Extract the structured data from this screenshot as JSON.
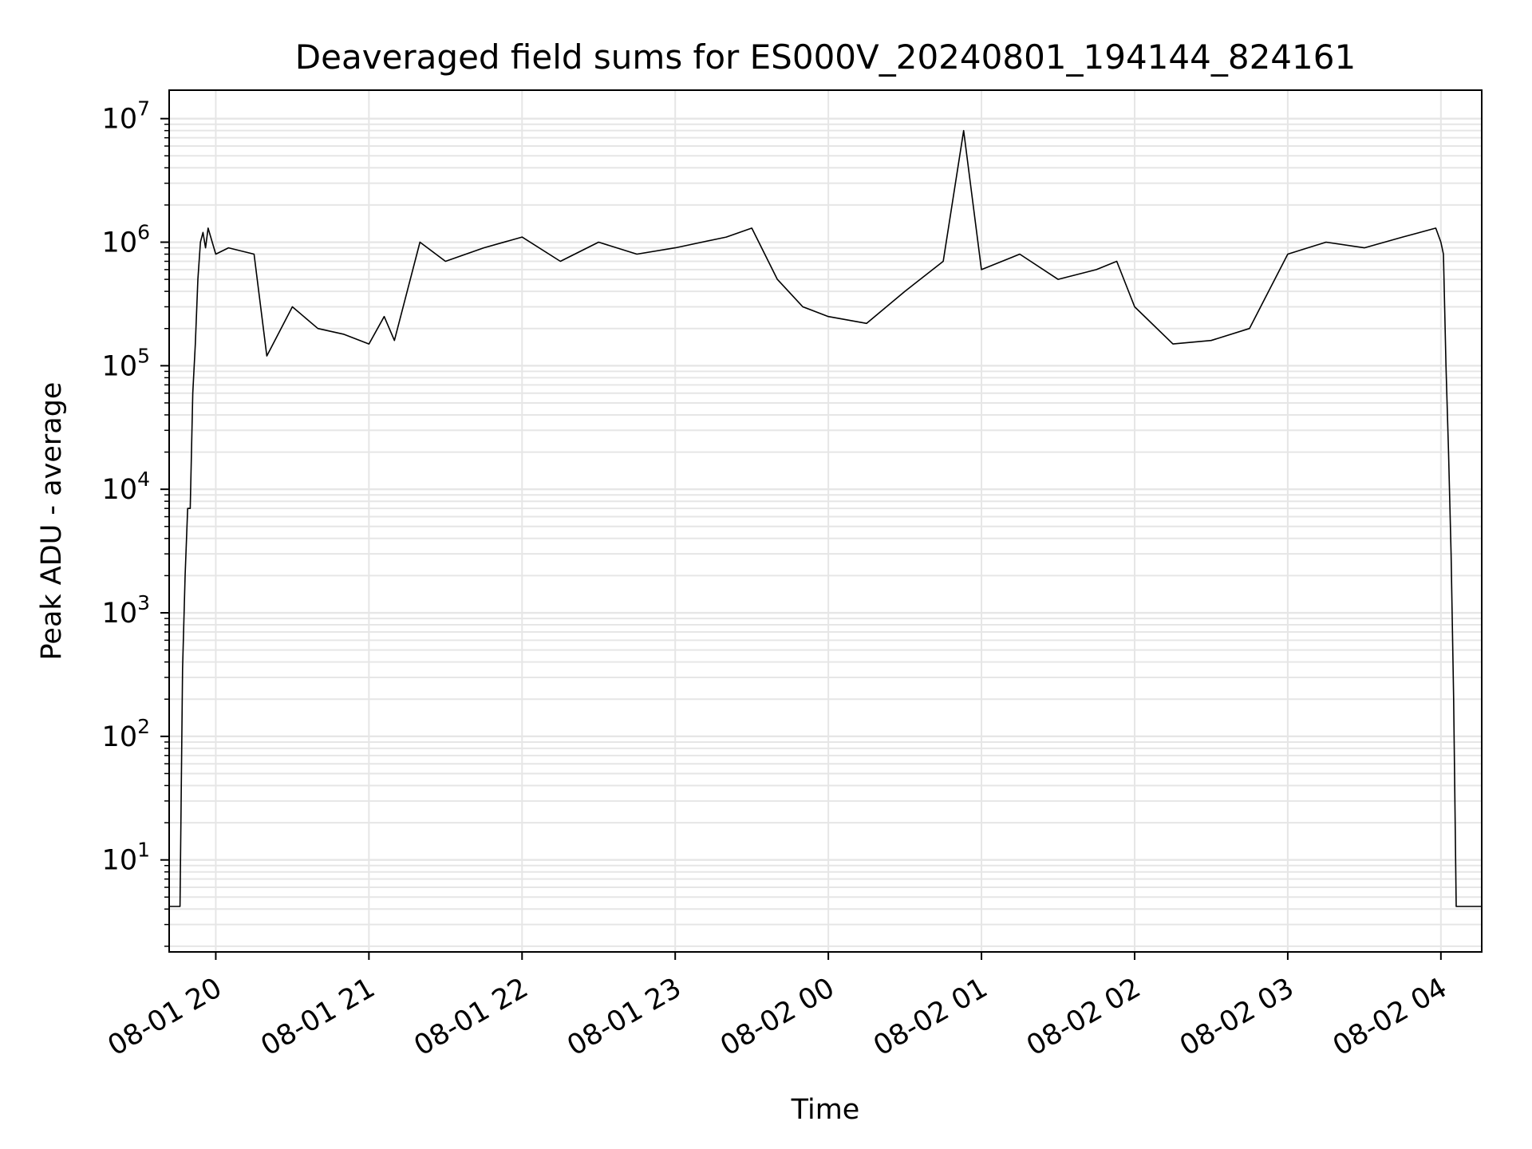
{
  "chart_data": {
    "type": "line",
    "title": "Deaveraged field sums for ES000V_20240801_194144_824161",
    "xlabel": "Time",
    "ylabel": "Peak ADU - average",
    "yscale": "log",
    "ylim": [
      1.8,
      17000000
    ],
    "xlim": [
      "2024-08-01T19:41:44",
      "2024-08-02T04:16:00"
    ],
    "grid": true,
    "line_color": "#000000",
    "grid_color": "#e6e6e6",
    "xticks": [
      {
        "t": "2024-08-01T20:00:00",
        "label": "08-01 20"
      },
      {
        "t": "2024-08-01T21:00:00",
        "label": "08-01 21"
      },
      {
        "t": "2024-08-01T22:00:00",
        "label": "08-01 22"
      },
      {
        "t": "2024-08-01T23:00:00",
        "label": "08-01 23"
      },
      {
        "t": "2024-08-02T00:00:00",
        "label": "08-02 00"
      },
      {
        "t": "2024-08-02T01:00:00",
        "label": "08-02 01"
      },
      {
        "t": "2024-08-02T02:00:00",
        "label": "08-02 02"
      },
      {
        "t": "2024-08-02T03:00:00",
        "label": "08-02 03"
      },
      {
        "t": "2024-08-02T04:00:00",
        "label": "08-02 04"
      }
    ],
    "yticks": [
      {
        "exp": 1,
        "base": "10",
        "sup": "1"
      },
      {
        "exp": 2,
        "base": "10",
        "sup": "2"
      },
      {
        "exp": 3,
        "base": "10",
        "sup": "3"
      },
      {
        "exp": 4,
        "base": "10",
        "sup": "4"
      },
      {
        "exp": 5,
        "base": "10",
        "sup": "5"
      },
      {
        "exp": 6,
        "base": "10",
        "sup": "6"
      },
      {
        "exp": 7,
        "base": "10",
        "sup": "7"
      }
    ],
    "series": [
      {
        "x": [
          "2024-08-01T19:41:44",
          "2024-08-01T19:46:00",
          "2024-08-01T19:47:00",
          "2024-08-01T19:48:00",
          "2024-08-01T19:49:00",
          "2024-08-01T19:50:00",
          "2024-08-01T19:51:00",
          "2024-08-01T19:52:00",
          "2024-08-01T19:53:00",
          "2024-08-01T19:54:00",
          "2024-08-01T19:55:00",
          "2024-08-01T19:56:00",
          "2024-08-01T19:57:00",
          "2024-08-01T20:00:00",
          "2024-08-01T20:05:00",
          "2024-08-01T20:15:00",
          "2024-08-01T20:20:00",
          "2024-08-01T20:30:00",
          "2024-08-01T20:40:00",
          "2024-08-01T20:50:00",
          "2024-08-01T21:00:00",
          "2024-08-01T21:06:00",
          "2024-08-01T21:10:00",
          "2024-08-01T21:20:00",
          "2024-08-01T21:30:00",
          "2024-08-01T21:45:00",
          "2024-08-01T22:00:00",
          "2024-08-01T22:15:00",
          "2024-08-01T22:30:00",
          "2024-08-01T22:45:00",
          "2024-08-01T23:00:00",
          "2024-08-01T23:20:00",
          "2024-08-01T23:30:00",
          "2024-08-01T23:40:00",
          "2024-08-01T23:50:00",
          "2024-08-02T00:00:00",
          "2024-08-02T00:15:00",
          "2024-08-02T00:30:00",
          "2024-08-02T00:45:00",
          "2024-08-02T00:53:00",
          "2024-08-02T01:00:00",
          "2024-08-02T01:15:00",
          "2024-08-02T01:30:00",
          "2024-08-02T01:45:00",
          "2024-08-02T01:53:00",
          "2024-08-02T02:00:00",
          "2024-08-02T02:15:00",
          "2024-08-02T02:30:00",
          "2024-08-02T02:45:00",
          "2024-08-02T03:00:00",
          "2024-08-02T03:15:00",
          "2024-08-02T03:30:00",
          "2024-08-02T03:45:00",
          "2024-08-02T03:58:00",
          "2024-08-02T04:00:00",
          "2024-08-02T04:01:00",
          "2024-08-02T04:02:00",
          "2024-08-02T04:03:00",
          "2024-08-02T04:04:00",
          "2024-08-02T04:05:00",
          "2024-08-02T04:06:00",
          "2024-08-02T04:07:00",
          "2024-08-02T04:16:00"
        ],
        "y": [
          4.2,
          4.2,
          350,
          2000,
          7000,
          7000,
          60000,
          150000,
          500000,
          1000000,
          1200000,
          900000,
          1300000,
          800000,
          900000,
          800000,
          120000,
          300000,
          200000,
          180000,
          150000,
          250000,
          160000,
          1000000,
          700000,
          900000,
          1100000,
          700000,
          1000000,
          800000,
          900000,
          1100000,
          1300000,
          500000,
          300000,
          250000,
          220000,
          400000,
          700000,
          8000000,
          600000,
          800000,
          500000,
          600000,
          700000,
          300000,
          150000,
          160000,
          200000,
          800000,
          1000000,
          900000,
          1100000,
          1300000,
          1000000,
          800000,
          100000,
          20000,
          3000,
          200,
          4.2,
          4.2,
          4.2
        ]
      }
    ]
  }
}
